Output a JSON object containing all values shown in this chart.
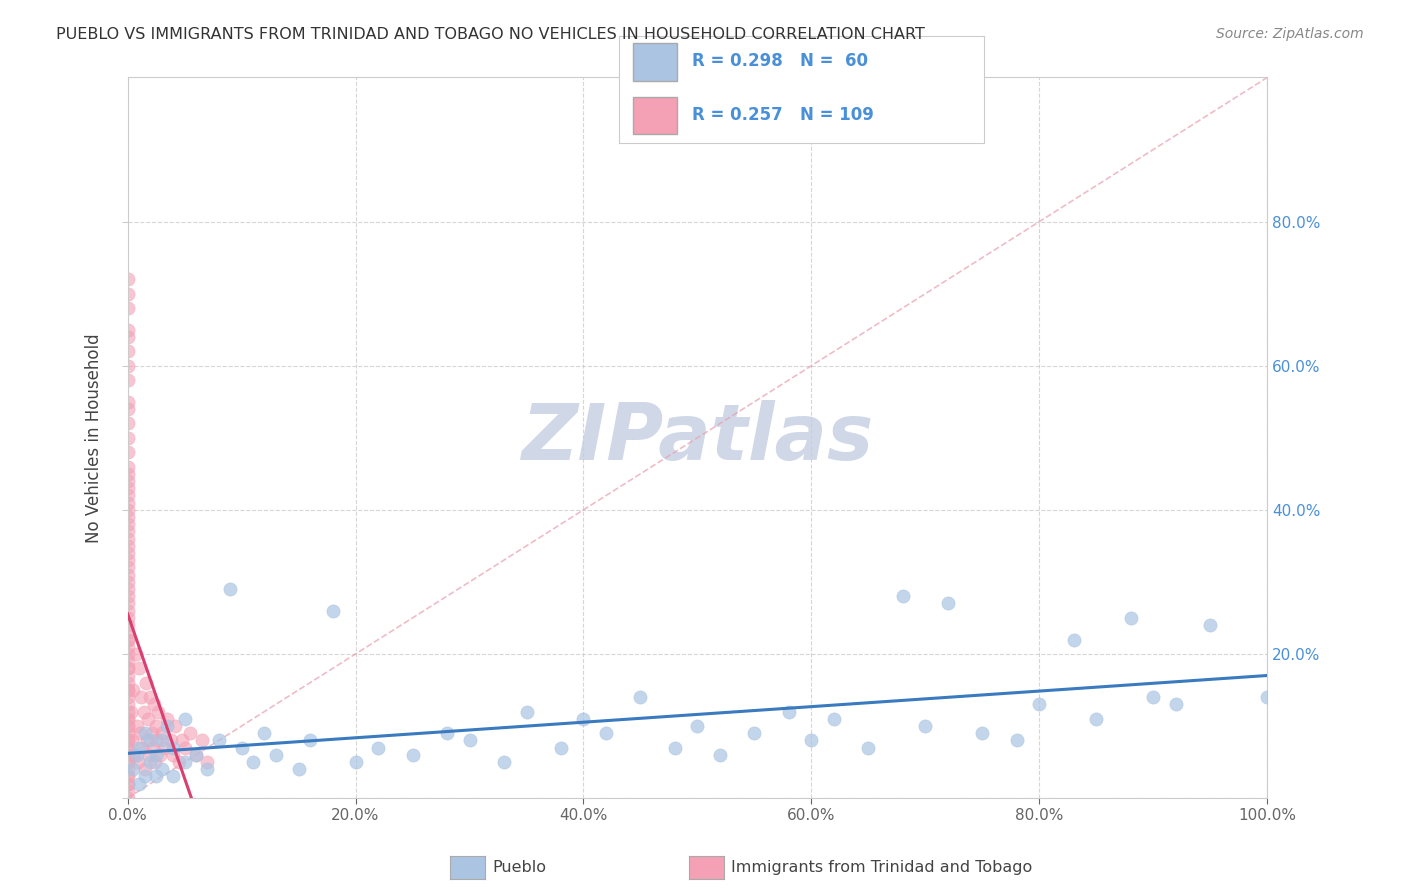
{
  "title": "PUEBLO VS IMMIGRANTS FROM TRINIDAD AND TOBAGO NO VEHICLES IN HOUSEHOLD CORRELATION CHART",
  "source": "Source: ZipAtlas.com",
  "ylabel": "No Vehicles in Household",
  "xlim": [
    0,
    1.0
  ],
  "ylim": [
    0,
    1.0
  ],
  "legend_r1": "R = 0.298",
  "legend_n1": "N =  60",
  "legend_r2": "R = 0.257",
  "legend_n2": "N = 109",
  "color_pueblo": "#aac4e2",
  "color_immigrants": "#f4a0b5",
  "color_pueblo_line": "#3a7abf",
  "color_immigrants_line": "#d94070",
  "color_diag_line": "#e8a0b0",
  "watermark_color": "#d0d8e8",
  "pueblo_x": [
    0.005,
    0.008,
    0.01,
    0.01,
    0.015,
    0.015,
    0.02,
    0.02,
    0.025,
    0.025,
    0.03,
    0.03,
    0.035,
    0.04,
    0.04,
    0.05,
    0.05,
    0.06,
    0.07,
    0.08,
    0.09,
    0.1,
    0.11,
    0.12,
    0.13,
    0.15,
    0.16,
    0.18,
    0.2,
    0.22,
    0.25,
    0.28,
    0.3,
    0.33,
    0.35,
    0.38,
    0.4,
    0.42,
    0.45,
    0.48,
    0.5,
    0.52,
    0.55,
    0.58,
    0.6,
    0.62,
    0.65,
    0.68,
    0.7,
    0.72,
    0.75,
    0.78,
    0.8,
    0.83,
    0.85,
    0.88,
    0.9,
    0.92,
    0.95,
    1.0
  ],
  "pueblo_y": [
    0.04,
    0.06,
    0.02,
    0.07,
    0.03,
    0.09,
    0.05,
    0.08,
    0.03,
    0.06,
    0.08,
    0.04,
    0.1,
    0.03,
    0.07,
    0.05,
    0.11,
    0.06,
    0.04,
    0.08,
    0.29,
    0.07,
    0.05,
    0.09,
    0.06,
    0.04,
    0.08,
    0.26,
    0.05,
    0.07,
    0.06,
    0.09,
    0.08,
    0.05,
    0.12,
    0.07,
    0.11,
    0.09,
    0.14,
    0.07,
    0.1,
    0.06,
    0.09,
    0.12,
    0.08,
    0.11,
    0.07,
    0.28,
    0.1,
    0.27,
    0.09,
    0.08,
    0.13,
    0.22,
    0.11,
    0.25,
    0.14,
    0.13,
    0.24,
    0.14
  ],
  "immigrants_x": [
    0.0,
    0.0,
    0.0,
    0.0,
    0.0,
    0.0,
    0.0,
    0.0,
    0.0,
    0.0,
    0.0,
    0.0,
    0.0,
    0.0,
    0.0,
    0.0,
    0.0,
    0.0,
    0.0,
    0.0,
    0.0,
    0.0,
    0.0,
    0.0,
    0.0,
    0.0,
    0.0,
    0.0,
    0.0,
    0.0,
    0.0,
    0.0,
    0.0,
    0.0,
    0.0,
    0.0,
    0.0,
    0.0,
    0.0,
    0.0,
    0.0,
    0.0,
    0.0,
    0.0,
    0.0,
    0.0,
    0.0,
    0.0,
    0.0,
    0.0,
    0.0,
    0.0,
    0.0,
    0.0,
    0.0,
    0.0,
    0.0,
    0.0,
    0.0,
    0.0,
    0.0,
    0.0,
    0.0,
    0.0,
    0.0,
    0.0,
    0.0,
    0.0,
    0.0,
    0.0,
    0.003,
    0.004,
    0.005,
    0.006,
    0.007,
    0.008,
    0.009,
    0.01,
    0.011,
    0.012,
    0.013,
    0.014,
    0.015,
    0.016,
    0.017,
    0.018,
    0.019,
    0.02,
    0.021,
    0.022,
    0.023,
    0.024,
    0.025,
    0.026,
    0.027,
    0.028,
    0.03,
    0.032,
    0.035,
    0.038,
    0.04,
    0.042,
    0.045,
    0.048,
    0.05,
    0.055,
    0.06,
    0.065,
    0.07
  ],
  "immigrants_y": [
    0.0,
    0.01,
    0.02,
    0.03,
    0.04,
    0.05,
    0.06,
    0.07,
    0.08,
    0.09,
    0.1,
    0.11,
    0.12,
    0.13,
    0.14,
    0.15,
    0.16,
    0.17,
    0.18,
    0.19,
    0.2,
    0.21,
    0.22,
    0.23,
    0.24,
    0.25,
    0.26,
    0.27,
    0.28,
    0.29,
    0.3,
    0.31,
    0.32,
    0.33,
    0.34,
    0.35,
    0.36,
    0.37,
    0.38,
    0.39,
    0.4,
    0.41,
    0.42,
    0.43,
    0.44,
    0.45,
    0.5,
    0.55,
    0.6,
    0.65,
    0.7,
    0.72,
    0.48,
    0.52,
    0.58,
    0.62,
    0.68,
    0.46,
    0.54,
    0.64,
    0.02,
    0.05,
    0.08,
    0.11,
    0.15,
    0.18,
    0.22,
    0.1,
    0.07,
    0.03,
    0.12,
    0.08,
    0.15,
    0.06,
    0.2,
    0.1,
    0.05,
    0.18,
    0.09,
    0.14,
    0.07,
    0.12,
    0.04,
    0.16,
    0.08,
    0.11,
    0.06,
    0.14,
    0.09,
    0.07,
    0.13,
    0.05,
    0.1,
    0.08,
    0.12,
    0.06,
    0.09,
    0.07,
    0.11,
    0.08,
    0.06,
    0.1,
    0.05,
    0.08,
    0.07,
    0.09,
    0.06,
    0.08,
    0.05
  ]
}
